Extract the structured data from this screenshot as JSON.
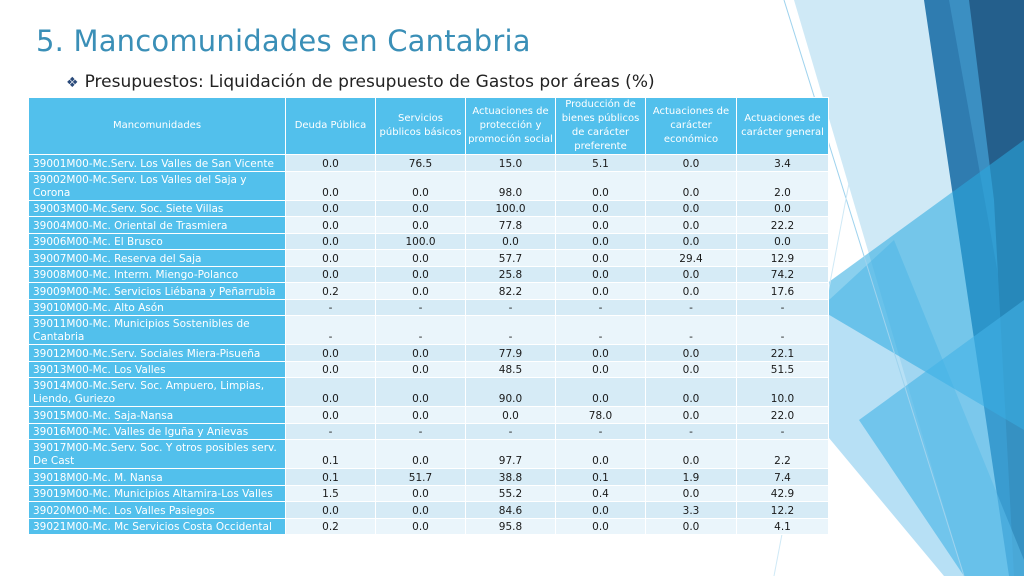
{
  "slide": {
    "title": "5. Mancomunidades en Cantabria",
    "subtitle": "Presupuestos: Liquidación de presupuesto de Gastos por áreas (%)",
    "bullet_icon": "diamond-bullet-icon",
    "accent_color": "#3a8fb7",
    "header_color": "#52c0ec"
  },
  "table": {
    "headers": [
      "Mancomunidades",
      "Deuda Pública",
      "Servicios públicos básicos",
      "Actuaciones de protección y promoción social",
      "Producción de bienes públicos de carácter preferente",
      "Actuaciones de carácter económico",
      "Actuaciones de carácter general"
    ],
    "rows": [
      [
        "39001M00-Mc.Serv. Los Valles de San Vicente",
        "0.0",
        "76.5",
        "15.0",
        "5.1",
        "0.0",
        "3.4"
      ],
      [
        "39002M00-Mc.Serv. Los Valles del Saja y Corona",
        "0.0",
        "0.0",
        "98.0",
        "0.0",
        "0.0",
        "2.0"
      ],
      [
        "39003M00-Mc.Serv. Soc. Siete Villas",
        "0.0",
        "0.0",
        "100.0",
        "0.0",
        "0.0",
        "0.0"
      ],
      [
        "39004M00-Mc. Oriental de Trasmiera",
        "0.0",
        "0.0",
        "77.8",
        "0.0",
        "0.0",
        "22.2"
      ],
      [
        "39006M00-Mc. El Brusco",
        "0.0",
        "100.0",
        "0.0",
        "0.0",
        "0.0",
        "0.0"
      ],
      [
        "39007M00-Mc. Reserva del Saja",
        "0.0",
        "0.0",
        "57.7",
        "0.0",
        "29.4",
        "12.9"
      ],
      [
        "39008M00-Mc. Interm. Miengo-Polanco",
        "0.0",
        "0.0",
        "25.8",
        "0.0",
        "0.0",
        "74.2"
      ],
      [
        "39009M00-Mc. Servicios Liébana y Peñarrubia",
        "0.2",
        "0.0",
        "82.2",
        "0.0",
        "0.0",
        "17.6"
      ],
      [
        "39010M00-Mc. Alto Asón",
        "-",
        "-",
        "-",
        "-",
        "-",
        "-"
      ],
      [
        "39011M00-Mc. Municipios Sostenibles de Cantabria",
        "-",
        "-",
        "-",
        "-",
        "-",
        "-"
      ],
      [
        "39012M00-Mc.Serv. Sociales Miera-Pisueña",
        "0.0",
        "0.0",
        "77.9",
        "0.0",
        "0.0",
        "22.1"
      ],
      [
        "39013M00-Mc. Los Valles",
        "0.0",
        "0.0",
        "48.5",
        "0.0",
        "0.0",
        "51.5"
      ],
      [
        "39014M00-Mc.Serv. Soc. Ampuero, Limpias, Liendo, Guriezo",
        "0.0",
        "0.0",
        "90.0",
        "0.0",
        "0.0",
        "10.0"
      ],
      [
        "39015M00-Mc. Saja-Nansa",
        "0.0",
        "0.0",
        "0.0",
        "78.0",
        "0.0",
        "22.0"
      ],
      [
        "39016M00-Mc. Valles de Iguña y Anievas",
        "-",
        "-",
        "-",
        "-",
        "-",
        "-"
      ],
      [
        "39017M00-Mc.Serv. Soc. Y otros posibles serv. De Cast",
        "0.1",
        "0.0",
        "97.7",
        "0.0",
        "0.0",
        "2.2"
      ],
      [
        "39018M00-Mc. M. Nansa",
        "0.1",
        "51.7",
        "38.8",
        "0.1",
        "1.9",
        "7.4"
      ],
      [
        "39019M00-Mc. Municipios Altamira-Los Valles",
        "1.5",
        "0.0",
        "55.2",
        "0.4",
        "0.0",
        "42.9"
      ],
      [
        "39020M00-Mc. Los Valles Pasiegos",
        "0.0",
        "0.0",
        "84.6",
        "0.0",
        "3.3",
        "12.2"
      ],
      [
        "39021M00-Mc. Mc Servicios Costa Occidental",
        "0.2",
        "0.0",
        "95.8",
        "0.0",
        "0.0",
        "4.1"
      ]
    ]
  }
}
